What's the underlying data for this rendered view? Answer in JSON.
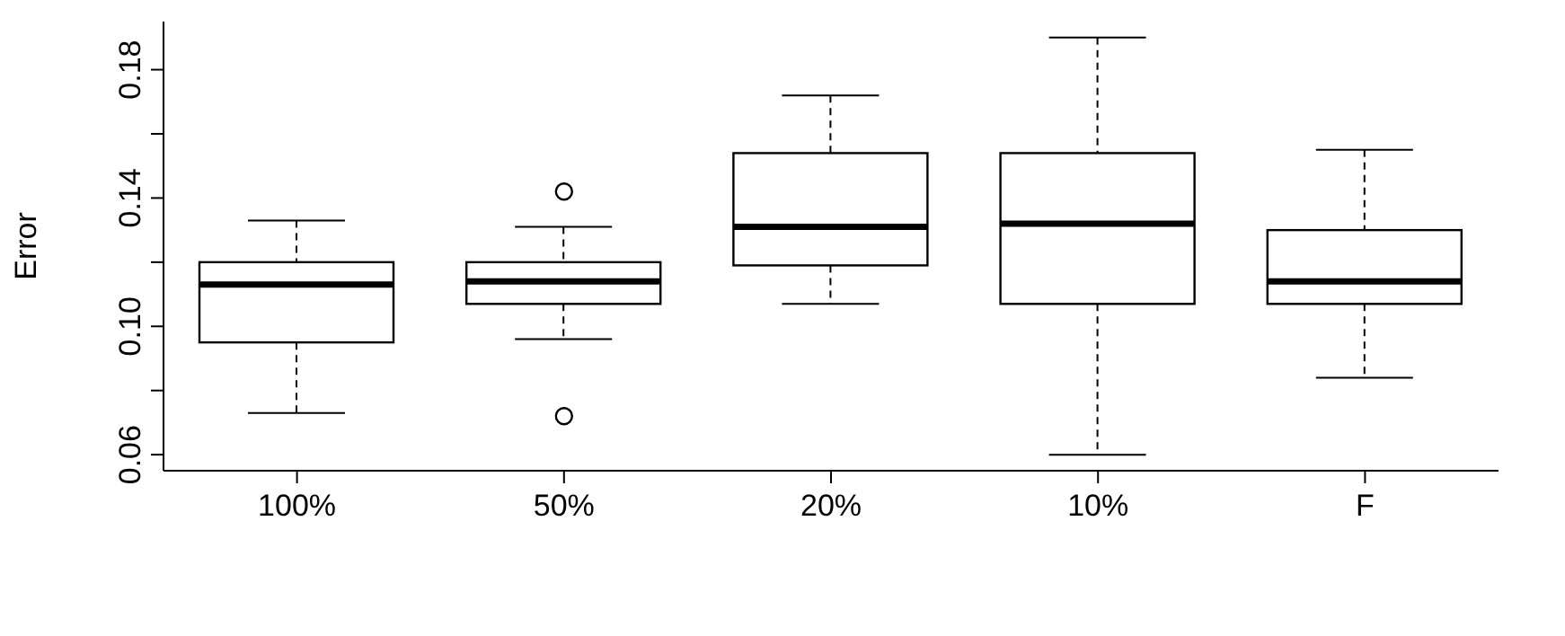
{
  "chart_data": {
    "type": "box",
    "ylabel": "Error",
    "categories": [
      "100%",
      "50%",
      "20%",
      "10%",
      "F"
    ],
    "boxes": [
      {
        "low": 0.073,
        "q1": 0.095,
        "median": 0.113,
        "q3": 0.12,
        "high": 0.133
      },
      {
        "low": 0.096,
        "q1": 0.107,
        "median": 0.114,
        "q3": 0.12,
        "high": 0.131,
        "outliers": [
          0.142,
          0.072
        ]
      },
      {
        "low": 0.107,
        "q1": 0.119,
        "median": 0.131,
        "q3": 0.154,
        "high": 0.172
      },
      {
        "low": 0.06,
        "q1": 0.107,
        "median": 0.132,
        "q3": 0.154,
        "high": 0.19
      },
      {
        "low": 0.084,
        "q1": 0.107,
        "median": 0.114,
        "q3": 0.13,
        "high": 0.155
      }
    ],
    "color": "#000000",
    "ylim": [
      0.055,
      0.195
    ],
    "yticks": [
      0.06,
      {
        "value": 0.08,
        "label": null
      },
      {
        "value": 0.1,
        "label": "0.10"
      },
      {
        "value": 0.12,
        "label": null
      },
      0.14,
      {
        "value": 0.16,
        "label": null
      },
      0.18
    ],
    "grid": false,
    "legend": false
  }
}
